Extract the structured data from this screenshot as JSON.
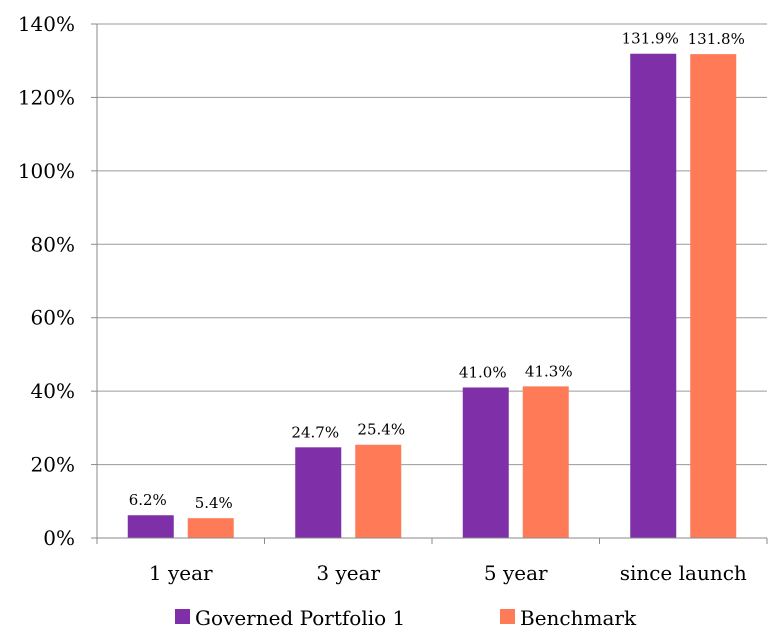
{
  "chart_data": {
    "type": "bar",
    "categories": [
      "1 year",
      "3 year",
      "5 year",
      "since launch"
    ],
    "series": [
      {
        "name": "Governed Portfolio 1",
        "color": "#7F2FA7",
        "values": [
          6.2,
          24.7,
          41.0,
          131.9
        ],
        "labels": [
          "6.2%",
          "24.7%",
          "41.0%",
          "131.9%"
        ]
      },
      {
        "name": "Benchmark",
        "color": "#FF7B57",
        "values": [
          5.4,
          25.4,
          41.3,
          131.8
        ],
        "labels": [
          "5.4%",
          "25.4%",
          "41.3%",
          "131.8%"
        ]
      }
    ],
    "ylim": [
      0,
      140
    ],
    "yticks": [
      0,
      20,
      40,
      60,
      80,
      100,
      120,
      140
    ],
    "ytick_labels": [
      "0%",
      "20%",
      "40%",
      "60%",
      "80%",
      "100%",
      "120%",
      "140%"
    ],
    "grid": true,
    "legend_position": "bottom",
    "title": "",
    "xlabel": "",
    "ylabel": ""
  }
}
